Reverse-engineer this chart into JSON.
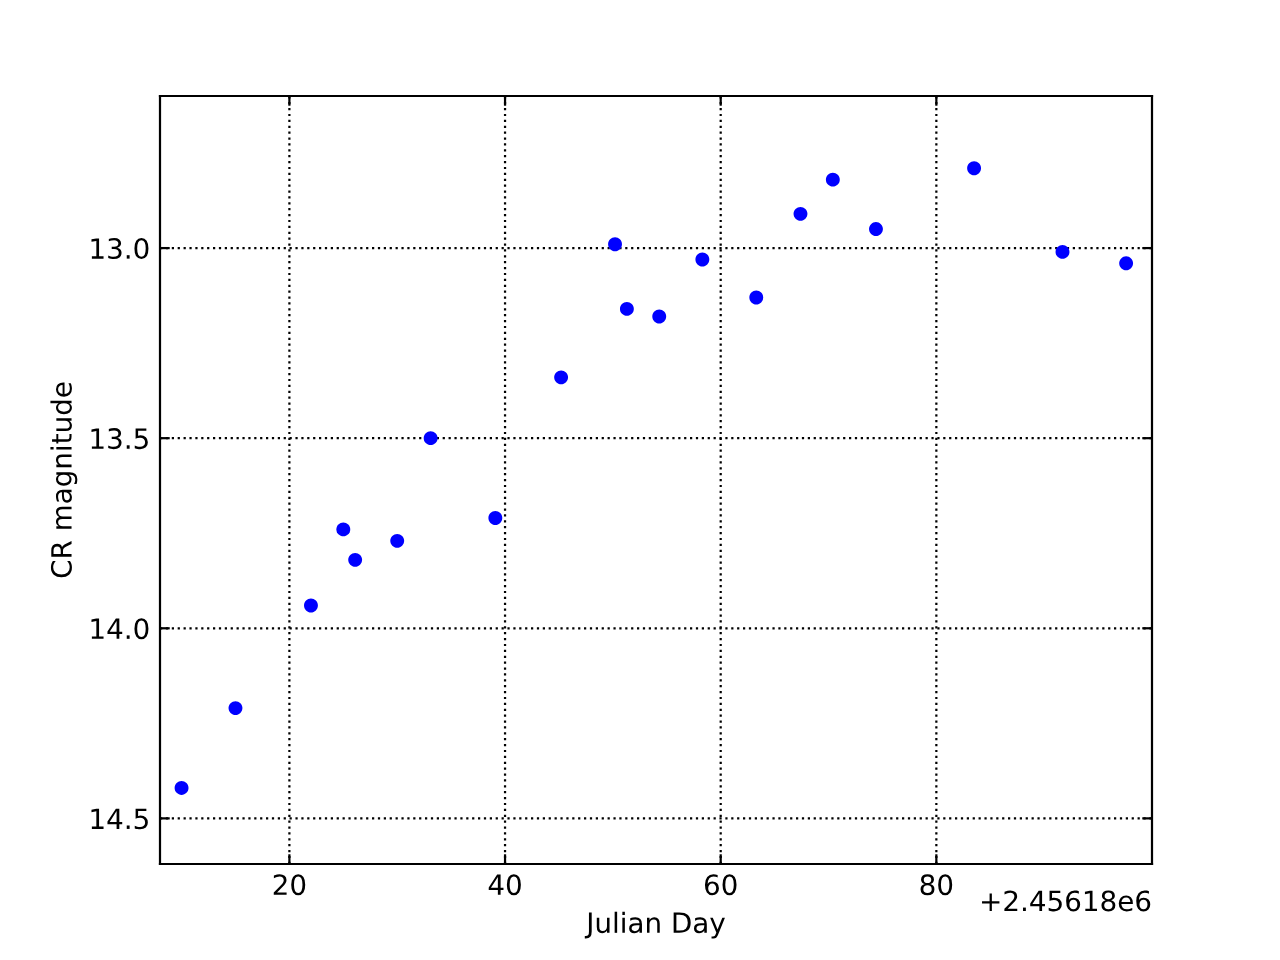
{
  "chart_data": {
    "type": "scatter",
    "xlabel": "Julian Day",
    "ylabel": "CR magnitude",
    "x": [
      10.0,
      15.0,
      22.0,
      25.0,
      26.1,
      30.0,
      33.1,
      39.1,
      45.2,
      50.2,
      51.3,
      54.3,
      58.3,
      63.3,
      67.4,
      70.4,
      74.4,
      83.5,
      91.7,
      97.6
    ],
    "series": [
      {
        "color": "#0000ff",
        "values": [
          14.42,
          14.21,
          13.94,
          13.74,
          13.82,
          13.77,
          13.5,
          13.71,
          13.34,
          12.99,
          13.16,
          13.18,
          13.03,
          13.13,
          12.91,
          12.82,
          12.95,
          12.79,
          13.01,
          13.04
        ]
      }
    ],
    "xlim": [
      8,
      100
    ],
    "xticks": [
      20,
      40,
      60,
      80
    ],
    "ylim": [
      14.62,
      12.6
    ],
    "yticks": [
      {
        "value": 13,
        "label": "13.0"
      },
      13.5,
      {
        "value": 14,
        "label": "14.0"
      },
      14.5
    ],
    "grid": true,
    "marker": "circle",
    "legend": false,
    "annotations": [
      "+2.45618e6"
    ]
  }
}
